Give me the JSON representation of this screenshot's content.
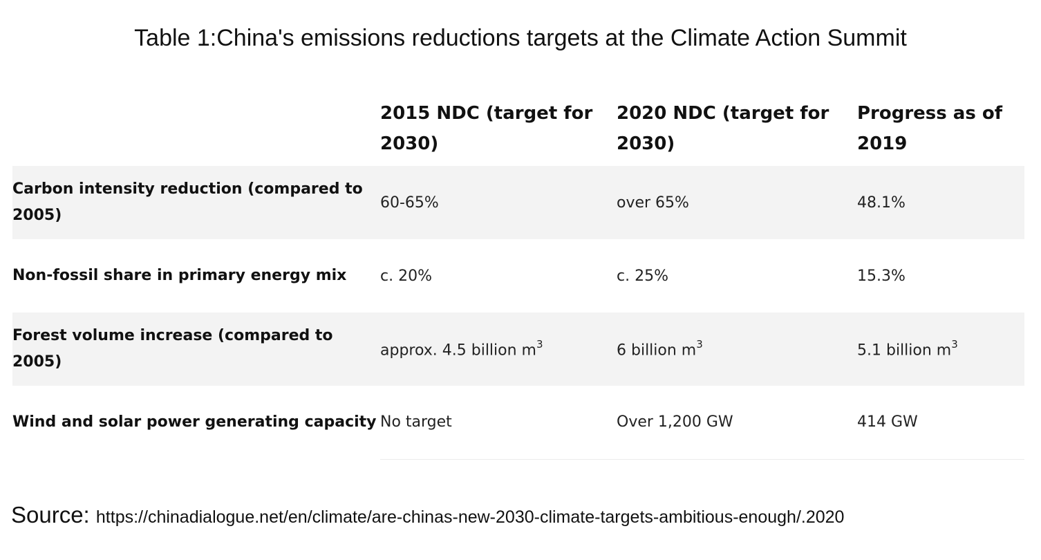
{
  "title": "Table 1:China's emissions reductions targets at the Climate Action Summit",
  "table": {
    "headers": {
      "corner": "",
      "col_2015": "2015 NDC (target for 2030)",
      "col_2020": "2020 NDC (target for 2030)",
      "col_progress": "Progress as of 2019"
    },
    "rows": [
      {
        "label": "Carbon intensity reduction (compared to 2005)",
        "ndc_2015": "60-65%",
        "ndc_2020": "over 65%",
        "progress_2019": "48.1%"
      },
      {
        "label": "Non-fossil share in primary energy mix",
        "ndc_2015": "c. 20%",
        "ndc_2020": "c. 25%",
        "progress_2019": "15.3%"
      },
      {
        "label": "Forest volume increase (compared to 2005)",
        "ndc_2015": "approx. 4.5 billion m",
        "ndc_2020": "6 billion m",
        "progress_2019": "5.1 billion m",
        "unit_superscript": "3"
      },
      {
        "label": "Wind and solar power generating capacity",
        "ndc_2015": "No target",
        "ndc_2020": "Over 1,200 GW",
        "progress_2019": "414 GW"
      }
    ]
  },
  "source": {
    "label": "Source: ",
    "text": "https://chinadialogue.net/en/climate/are-chinas-new-2030-climate-targets-ambitious-enough/.2020"
  },
  "colors": {
    "row_shade": "#f3f3f3",
    "text": "#111111"
  }
}
